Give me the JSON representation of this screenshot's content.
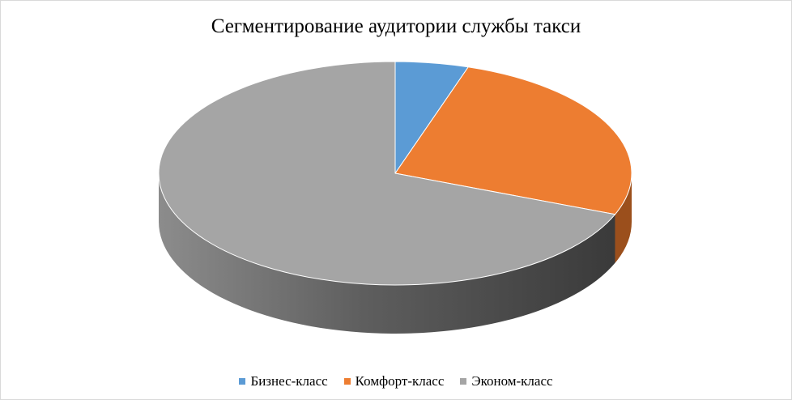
{
  "chart_data": {
    "type": "pie",
    "title": "Сегментирование аудитории службы такси",
    "categories": [
      "Бизнес-класс",
      "Комфорт-класс",
      "Эконом-класс"
    ],
    "values": [
      5,
      26,
      69
    ],
    "unit": "%",
    "colors": [
      "#5b9bd5",
      "#ed7d31",
      "#a5a5a5"
    ],
    "side_colors": [
      "#3a6e9e",
      "#9b4f1c",
      "#4f4f4f"
    ],
    "style": "3d",
    "legend_position": "bottom"
  }
}
